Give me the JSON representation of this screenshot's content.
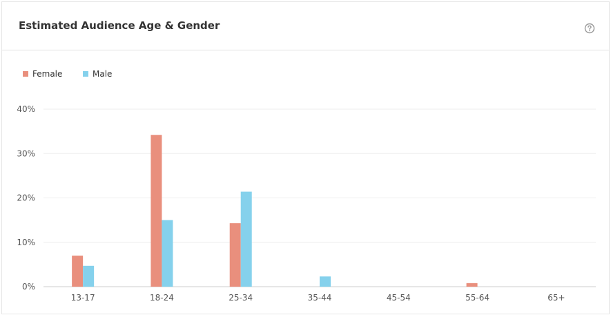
{
  "header": {
    "title": "Estimated Audience Age & Gender",
    "help_icon": "question-circle-icon"
  },
  "colors": {
    "female": "#e98f7d",
    "male": "#85d1ec",
    "grid": "#eeeeee",
    "axis": "#cccccc"
  },
  "chart_data": {
    "type": "bar",
    "categories": [
      "13-17",
      "18-24",
      "25-34",
      "35-44",
      "45-54",
      "55-64",
      "65+"
    ],
    "series": [
      {
        "name": "Female",
        "color": "#e98f7d",
        "values": [
          7.0,
          34.2,
          14.3,
          0,
          0,
          0.8,
          0
        ]
      },
      {
        "name": "Male",
        "color": "#85d1ec",
        "values": [
          4.7,
          15.0,
          21.4,
          2.3,
          0,
          0,
          0
        ]
      }
    ],
    "y_ticks": [
      "0%",
      "10%",
      "20%",
      "30%",
      "40%"
    ],
    "ylim": [
      0,
      40
    ],
    "legend": "top-left",
    "grid": true
  }
}
